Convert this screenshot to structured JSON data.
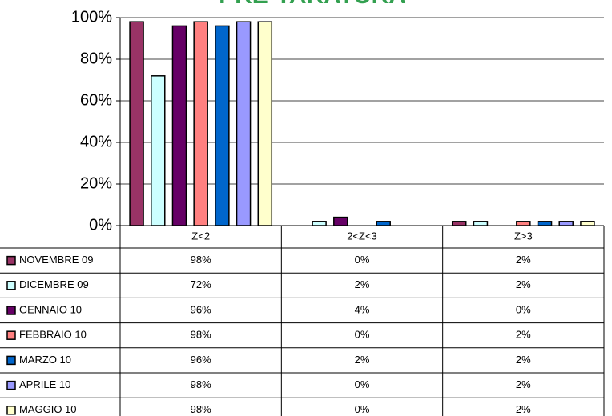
{
  "chart_data": {
    "type": "bar",
    "title": "PRE-TARATURA",
    "categories": [
      "Z<2",
      "2<Z<3",
      "Z>3"
    ],
    "series": [
      {
        "name": "NOVEMBRE 09",
        "color": "#993366",
        "values": [
          98,
          0,
          2
        ],
        "value_labels": [
          "98%",
          "0%",
          "2%"
        ]
      },
      {
        "name": "DICEMBRE 09",
        "color": "#ccffff",
        "values": [
          72,
          2,
          2
        ],
        "value_labels": [
          "72%",
          "2%",
          "2%"
        ]
      },
      {
        "name": "GENNAIO 10",
        "color": "#660066",
        "values": [
          96,
          4,
          0
        ],
        "value_labels": [
          "96%",
          "4%",
          "0%"
        ]
      },
      {
        "name": "FEBBRAIO 10",
        "color": "#ff8080",
        "values": [
          98,
          0,
          2
        ],
        "value_labels": [
          "98%",
          "0%",
          "2%"
        ]
      },
      {
        "name": "MARZO 10",
        "color": "#0066cc",
        "values": [
          96,
          2,
          2
        ],
        "value_labels": [
          "96%",
          "2%",
          "2%"
        ]
      },
      {
        "name": "APRILE 10",
        "color": "#9999ff",
        "values": [
          98,
          0,
          2
        ],
        "value_labels": [
          "98%",
          "0%",
          "2%"
        ]
      },
      {
        "name": "MAGGIO 10",
        "color": "#ffffcc",
        "values": [
          98,
          0,
          2
        ],
        "value_labels": [
          "98%",
          "0%",
          "2%"
        ]
      }
    ],
    "ylim": [
      0,
      100
    ],
    "yticks": [
      {
        "value": 0,
        "label": "0%"
      },
      {
        "value": 20,
        "label": "20%"
      },
      {
        "value": 40,
        "label": "40%"
      },
      {
        "value": 60,
        "label": "60%"
      },
      {
        "value": 80,
        "label": "80%"
      },
      {
        "value": 100,
        "label": "100%"
      }
    ],
    "grid": true
  }
}
